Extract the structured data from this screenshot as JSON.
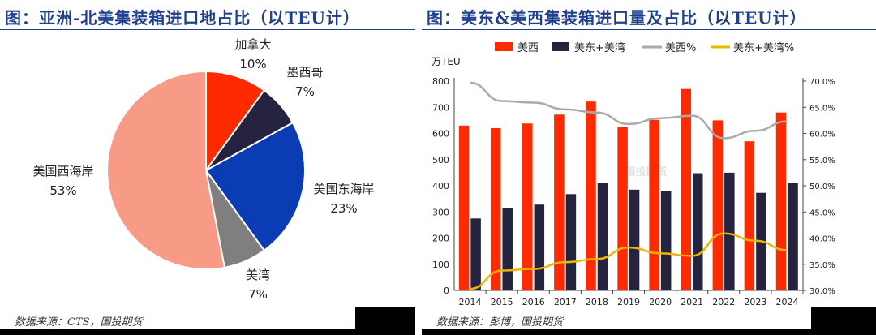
{
  "left": {
    "title": "图：亚洲-北美集装箱进口地占比（以TEU计）",
    "source": "数据来源：CTS，国投期货"
  },
  "right": {
    "title": "图：美东&美西集装箱进口量及占比（以TEU计）",
    "source": "数据来源：彭博，国投期货",
    "watermark": "国投期货"
  },
  "chart_data": [
    {
      "type": "pie",
      "slices": [
        {
          "label": "加拿大",
          "value": 10,
          "pct_label": "10%",
          "color": "#ff2a00"
        },
        {
          "label": "墨西哥",
          "value": 7,
          "pct_label": "7%",
          "color": "#252340"
        },
        {
          "label": "美国东海岸",
          "value": 23,
          "pct_label": "23%",
          "color": "#0a3cb4"
        },
        {
          "label": "美湾",
          "value": 7,
          "pct_label": "7%",
          "color": "#7f7f7f"
        },
        {
          "label": "美国西海岸",
          "value": 53,
          "pct_label": "53%",
          "color": "#f79a86"
        }
      ]
    },
    {
      "type": "bar",
      "categories": [
        "2014",
        "2015",
        "2016",
        "2017",
        "2018",
        "2019",
        "2020",
        "2021",
        "2022",
        "2023",
        "2024"
      ],
      "series": [
        {
          "name": "美西",
          "kind": "bar",
          "axis": "left",
          "color": "#ff2a00",
          "values": [
            630,
            620,
            638,
            672,
            722,
            625,
            652,
            770,
            650,
            570,
            680
          ]
        },
        {
          "name": "美东+美湾",
          "kind": "bar",
          "axis": "left",
          "color": "#252340",
          "values": [
            275,
            315,
            328,
            368,
            410,
            385,
            380,
            448,
            450,
            373,
            412
          ]
        },
        {
          "name": "美西%",
          "kind": "line",
          "axis": "right",
          "color": "#aaaaaa",
          "values": [
            69.7,
            66.2,
            65.9,
            64.6,
            64.0,
            61.8,
            62.9,
            63.4,
            59.1,
            60.5,
            62.3
          ]
        },
        {
          "name": "美东+美湾%",
          "kind": "line",
          "axis": "right",
          "color": "#f0b400",
          "values": [
            30.3,
            33.8,
            34.1,
            35.4,
            36.0,
            38.2,
            37.1,
            36.6,
            40.9,
            39.5,
            37.7
          ]
        }
      ],
      "ylabel_left": "万TEU",
      "ylim_left": [
        0,
        800
      ],
      "yticks_left": [
        "0",
        "100",
        "200",
        "300",
        "400",
        "500",
        "600",
        "700",
        "800"
      ],
      "ylim_right": [
        30,
        70
      ],
      "yticks_right": [
        "30.0%",
        "35.0%",
        "40.0%",
        "45.0%",
        "50.0%",
        "55.0%",
        "60.0%",
        "65.0%",
        "70.0%"
      ],
      "legend_position": "top",
      "grid": false
    }
  ]
}
